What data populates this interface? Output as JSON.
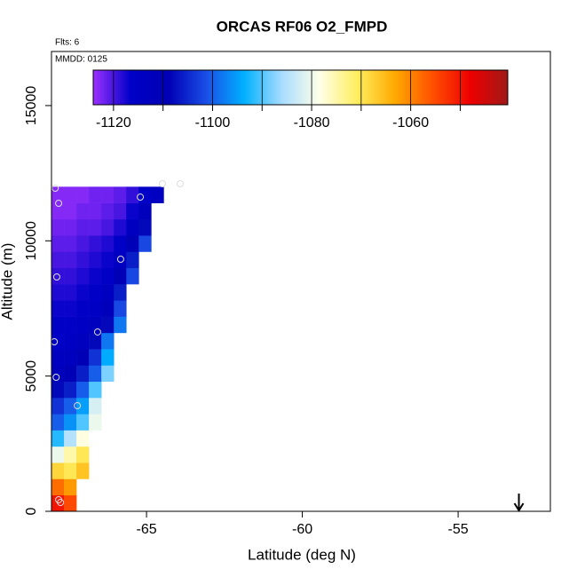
{
  "chart_data": {
    "type": "heatmap",
    "title": "ORCAS RF06 O2_FMPD",
    "subtitle": "Flts: 6",
    "annotation": "MMDD: 0125",
    "x_label": "Latitude (deg N)",
    "y_label": "Altitude (m)",
    "xlim": [
      -68.05,
      -52.04
    ],
    "xticks": [
      -65,
      -60,
      -55
    ],
    "ylim": [
      0,
      17000
    ],
    "yticks": [
      0,
      5000,
      10000,
      15000
    ],
    "xedges": [
      -68.05,
      -67.65,
      -67.25,
      -66.85,
      -66.45,
      -66.05,
      -65.65,
      -65.25,
      -64.85,
      -64.45,
      -64.05
    ],
    "yedges": [
      0,
      600,
      1200,
      1800,
      2400,
      3000,
      3600,
      4200,
      4800,
      5400,
      6000,
      6600,
      7200,
      7800,
      8400,
      9000,
      9600,
      10200,
      10800,
      11400,
      12000
    ],
    "z": [
      [
        -1050,
        -1055,
        null,
        null,
        null,
        null,
        null,
        null,
        null,
        null
      ],
      [
        -1058,
        -1062,
        null,
        null,
        null,
        null,
        null,
        null,
        null,
        null
      ],
      [
        -1068,
        -1070,
        -1066,
        null,
        null,
        null,
        null,
        null,
        null,
        null
      ],
      [
        -1080,
        -1075,
        -1070,
        null,
        null,
        null,
        null,
        null,
        null,
        null
      ],
      [
        -1092,
        -1085,
        -1078,
        null,
        null,
        null,
        null,
        null,
        null,
        null
      ],
      [
        -1100,
        -1096,
        -1090,
        -1080,
        null,
        null,
        null,
        null,
        null,
        null
      ],
      [
        -1104,
        -1100,
        -1095,
        -1082,
        null,
        null,
        null,
        null,
        null,
        null
      ],
      [
        -1108,
        -1106,
        -1100,
        -1090,
        null,
        null,
        null,
        null,
        null,
        null
      ],
      [
        -1112,
        -1110,
        -1106,
        -1100,
        -1088,
        null,
        null,
        null,
        null,
        null
      ],
      [
        -1114,
        -1113,
        -1110,
        -1104,
        -1094,
        null,
        null,
        null,
        null,
        null
      ],
      [
        -1116,
        -1115,
        -1113,
        -1108,
        -1098,
        null,
        null,
        null,
        null,
        null
      ],
      [
        -1116,
        -1116,
        -1115,
        -1113,
        -1108,
        -1098,
        null,
        null,
        null,
        null
      ],
      [
        -1117,
        -1117,
        -1116,
        -1115,
        -1111,
        -1102,
        null,
        null,
        null,
        null
      ],
      [
        -1118,
        -1118,
        -1117,
        -1116,
        -1114,
        -1106,
        null,
        null,
        null,
        null
      ],
      [
        -1119,
        -1119,
        -1118,
        -1117,
        -1116,
        -1110,
        -1102,
        null,
        null,
        null
      ],
      [
        -1120,
        -1120,
        -1119,
        -1118,
        -1117,
        -1114,
        -1106,
        null,
        null,
        null
      ],
      [
        -1121,
        -1121,
        -1120,
        -1119,
        -1118,
        -1116,
        -1110,
        -1102,
        null,
        null
      ],
      [
        -1122,
        -1122,
        -1121,
        -1121,
        -1120,
        -1118,
        -1114,
        -1108,
        null,
        null
      ],
      [
        -1123,
        -1123,
        -1122,
        -1122,
        -1121,
        -1120,
        -1117,
        -1112,
        null,
        null
      ],
      [
        -1123,
        -1123,
        -1123,
        -1122,
        -1122,
        -1121,
        -1119,
        -1116,
        -1114,
        null
      ]
    ],
    "zlim": [
      -1124.1,
      -1040.4
    ],
    "zticks": [
      -1120,
      -1100,
      -1080,
      -1060
    ],
    "zbreaks": [
      -1120,
      -1110,
      -1100,
      -1090,
      -1080,
      -1070,
      -1060,
      -1050
    ],
    "colors": [
      "#9b30ff",
      "#0000c8",
      "#0000b4",
      "#1a4ee6",
      "#00b0ff",
      "#a8dcff",
      "#ffffe8",
      "#ffee60",
      "#ffaa00",
      "#ff5000",
      "#ee0000",
      "#a01818"
    ],
    "points": {
      "lat": [
        -64.49,
        -63.92,
        -67.93,
        -65.2,
        -67.82,
        -65.83,
        -67.88,
        -66.57,
        -67.96,
        -67.9,
        -67.22,
        -67.82,
        -67.76
      ],
      "alt": [
        12110,
        12110,
        11946,
        11618,
        11388,
        9320,
        8664,
        6630,
        6268,
        4956,
        3905,
        427,
        328
      ]
    },
    "arrow_lat": -53.05
  }
}
